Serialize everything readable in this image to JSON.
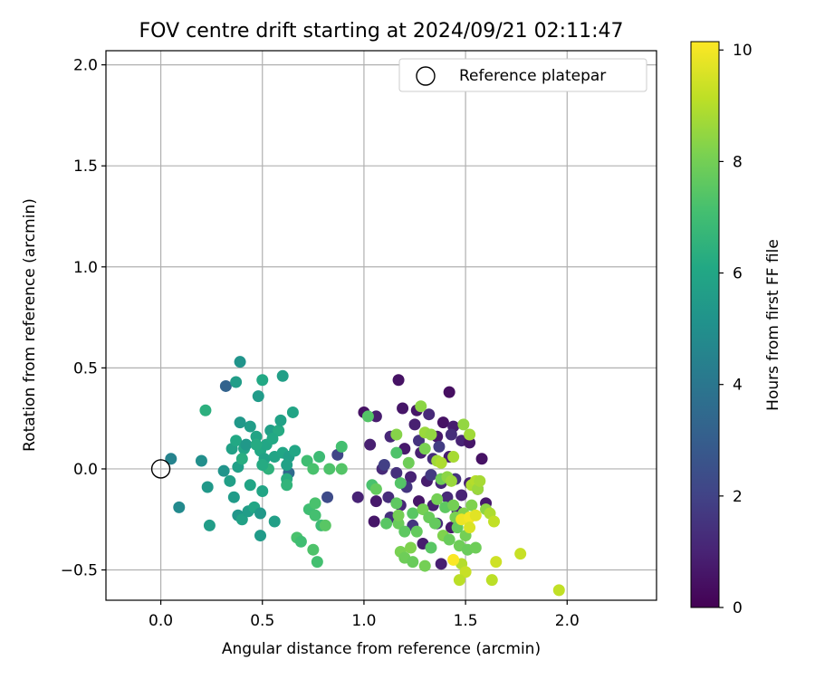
{
  "chart_data": {
    "type": "scatter",
    "title": "FOV centre drift starting at 2024/09/21 02:11:47",
    "xlabel": "Angular distance from reference (arcmin)",
    "ylabel": "Rotation from reference (arcmin)",
    "xlim": [
      -0.27,
      2.44
    ],
    "ylim": [
      -0.65,
      2.07
    ],
    "xticks": [
      0.0,
      0.5,
      1.0,
      1.5,
      2.0
    ],
    "yticks": [
      -0.5,
      0.0,
      0.5,
      1.0,
      1.5,
      2.0
    ],
    "xtick_labels": [
      "0.0",
      "0.5",
      "1.0",
      "1.5",
      "2.0"
    ],
    "ytick_labels": [
      "−0.5",
      "0.0",
      "0.5",
      "1.0",
      "1.5",
      "2.0"
    ],
    "grid": true,
    "legend": {
      "position": "top-right",
      "entries": [
        "Reference platepar"
      ]
    },
    "reference_point": {
      "x": 0.0,
      "y": 0.0
    },
    "colorbar": {
      "label": "Hours from first FF file",
      "range": [
        0,
        10.15
      ],
      "ticks": [
        0,
        2,
        4,
        6,
        8,
        10
      ],
      "tick_labels": [
        "0",
        "2",
        "4",
        "6",
        "8",
        "10"
      ],
      "colormap": "viridis"
    },
    "points": [
      [
        1.17,
        0.44,
        0.5
      ],
      [
        1.26,
        0.29,
        0.6
      ],
      [
        1.42,
        0.38,
        0.4
      ],
      [
        1.0,
        0.28,
        0.5
      ],
      [
        1.06,
        0.26,
        0.8
      ],
      [
        1.19,
        0.3,
        0.6
      ],
      [
        1.25,
        0.22,
        0.9
      ],
      [
        1.32,
        0.27,
        1.2
      ],
      [
        1.36,
        0.16,
        0.7
      ],
      [
        1.39,
        0.23,
        0.5
      ],
      [
        1.44,
        0.21,
        0.8
      ],
      [
        1.48,
        0.14,
        1.0
      ],
      [
        1.52,
        0.13,
        0.6
      ],
      [
        1.03,
        0.12,
        0.9
      ],
      [
        1.13,
        0.16,
        1.1
      ],
      [
        1.2,
        0.1,
        0.7
      ],
      [
        1.28,
        0.08,
        0.9
      ],
      [
        1.34,
        0.05,
        1.3
      ],
      [
        1.42,
        0.06,
        0.8
      ],
      [
        1.58,
        0.05,
        0.5
      ],
      [
        1.09,
        0.0,
        1.2
      ],
      [
        1.16,
        -0.02,
        1.4
      ],
      [
        1.23,
        -0.04,
        1.0
      ],
      [
        1.31,
        -0.06,
        0.8
      ],
      [
        1.38,
        -0.07,
        1.1
      ],
      [
        1.45,
        -0.05,
        1.5
      ],
      [
        1.52,
        -0.07,
        0.9
      ],
      [
        0.97,
        -0.14,
        1.0
      ],
      [
        1.06,
        -0.16,
        0.7
      ],
      [
        1.12,
        -0.14,
        1.3
      ],
      [
        1.18,
        -0.18,
        1.1
      ],
      [
        1.27,
        -0.16,
        0.6
      ],
      [
        1.34,
        -0.18,
        0.9
      ],
      [
        1.41,
        -0.14,
        1.2
      ],
      [
        1.48,
        -0.13,
        1.0
      ],
      [
        1.56,
        -0.1,
        0.8
      ],
      [
        1.6,
        -0.17,
        0.7
      ],
      [
        1.05,
        -0.26,
        0.6
      ],
      [
        1.13,
        -0.24,
        1.4
      ],
      [
        1.24,
        -0.28,
        1.6
      ],
      [
        1.36,
        -0.27,
        1.2
      ],
      [
        1.43,
        -0.29,
        0.7
      ],
      [
        1.29,
        -0.37,
        0.8
      ],
      [
        1.38,
        -0.47,
        0.9
      ],
      [
        1.46,
        -0.21,
        1.1
      ],
      [
        1.21,
        -0.09,
        1.6
      ],
      [
        1.27,
        0.14,
        1.5
      ],
      [
        1.37,
        0.11,
        1.8
      ],
      [
        1.43,
        0.17,
        1.3
      ],
      [
        1.33,
        -0.03,
        1.7
      ],
      [
        0.87,
        0.07,
        2.1
      ],
      [
        0.82,
        -0.14,
        2.3
      ],
      [
        1.1,
        0.02,
        1.9
      ],
      [
        0.32,
        0.41,
        3.2
      ],
      [
        0.63,
        -0.02,
        3.5
      ],
      [
        0.05,
        0.05,
        4.5
      ],
      [
        0.09,
        -0.19,
        4.8
      ],
      [
        0.2,
        0.04,
        5.0
      ],
      [
        0.23,
        -0.09,
        5.4
      ],
      [
        0.24,
        -0.28,
        5.6
      ],
      [
        0.31,
        -0.01,
        5.2
      ],
      [
        0.36,
        -0.14,
        5.5
      ],
      [
        0.34,
        -0.06,
        5.7
      ],
      [
        0.38,
        -0.23,
        5.3
      ],
      [
        0.4,
        -0.25,
        5.8
      ],
      [
        0.43,
        -0.21,
        5.6
      ],
      [
        0.46,
        -0.19,
        6.0
      ],
      [
        0.49,
        -0.22,
        5.4
      ],
      [
        0.49,
        -0.33,
        5.5
      ],
      [
        0.5,
        -0.11,
        5.9
      ],
      [
        0.56,
        -0.26,
        5.7
      ],
      [
        0.35,
        0.1,
        5.8
      ],
      [
        0.37,
        0.14,
        6.1
      ],
      [
        0.38,
        0.01,
        5.7
      ],
      [
        0.41,
        0.1,
        5.9
      ],
      [
        0.42,
        0.12,
        5.4
      ],
      [
        0.44,
        0.21,
        5.6
      ],
      [
        0.47,
        0.16,
        5.9
      ],
      [
        0.49,
        0.09,
        6.1
      ],
      [
        0.51,
        0.05,
        5.8
      ],
      [
        0.52,
        0.12,
        6.0
      ],
      [
        0.54,
        0.19,
        5.7
      ],
      [
        0.56,
        0.06,
        5.9
      ],
      [
        0.58,
        0.19,
        6.2
      ],
      [
        0.59,
        0.24,
        5.8
      ],
      [
        0.6,
        0.08,
        6.0
      ],
      [
        0.62,
        -0.05,
        6.3
      ],
      [
        0.63,
        0.06,
        5.7
      ],
      [
        0.65,
        0.28,
        5.9
      ],
      [
        0.39,
        0.23,
        5.4
      ],
      [
        0.39,
        0.53,
        5.2
      ],
      [
        0.37,
        0.43,
        5.6
      ],
      [
        0.5,
        0.44,
        6.1
      ],
      [
        0.48,
        0.36,
        5.5
      ],
      [
        0.6,
        0.46,
        5.7
      ],
      [
        0.22,
        0.29,
        6.4
      ],
      [
        0.47,
        0.12,
        6.2
      ],
      [
        0.53,
        0.0,
        6.5
      ],
      [
        0.55,
        0.15,
        6.1
      ],
      [
        0.62,
        0.02,
        5.8
      ],
      [
        0.66,
        0.09,
        6.0
      ],
      [
        0.4,
        0.05,
        6.3
      ],
      [
        0.44,
        -0.08,
        5.9
      ],
      [
        0.5,
        0.02,
        6.2
      ],
      [
        0.62,
        -0.08,
        6.6
      ],
      [
        0.72,
        0.04,
        7.0
      ],
      [
        0.75,
        0.0,
        7.2
      ],
      [
        0.78,
        0.06,
        6.9
      ],
      [
        0.83,
        0.0,
        7.3
      ],
      [
        0.89,
        0.11,
        7.1
      ],
      [
        0.89,
        0.0,
        7.4
      ],
      [
        0.73,
        -0.2,
        7.0
      ],
      [
        0.76,
        -0.17,
        7.2
      ],
      [
        0.76,
        -0.23,
        7.1
      ],
      [
        0.79,
        -0.28,
        6.9
      ],
      [
        0.81,
        -0.28,
        7.5
      ],
      [
        0.67,
        -0.34,
        7.2
      ],
      [
        0.69,
        -0.36,
        7.0
      ],
      [
        0.75,
        -0.4,
        7.3
      ],
      [
        0.77,
        -0.46,
        7.1
      ],
      [
        1.02,
        0.26,
        7.4
      ],
      [
        1.04,
        -0.08,
        7.2
      ],
      [
        1.06,
        -0.1,
        7.7
      ],
      [
        1.11,
        -0.27,
        7.5
      ],
      [
        1.16,
        0.08,
        7.3
      ],
      [
        1.16,
        -0.17,
        7.6
      ],
      [
        1.17,
        -0.27,
        7.8
      ],
      [
        1.18,
        -0.07,
        7.4
      ],
      [
        1.2,
        -0.31,
        7.6
      ],
      [
        1.22,
        0.03,
        7.9
      ],
      [
        1.24,
        -0.22,
        7.5
      ],
      [
        1.26,
        -0.31,
        7.7
      ],
      [
        1.29,
        -0.2,
        8.0
      ],
      [
        1.3,
        0.1,
        8.1
      ],
      [
        1.32,
        -0.24,
        7.8
      ],
      [
        1.33,
        -0.39,
        7.5
      ],
      [
        1.35,
        -0.27,
        7.7
      ],
      [
        1.36,
        -0.15,
        8.0
      ],
      [
        1.38,
        -0.05,
        7.9
      ],
      [
        1.39,
        -0.33,
        8.2
      ],
      [
        1.4,
        -0.19,
        7.6
      ],
      [
        1.42,
        -0.35,
        7.8
      ],
      [
        1.44,
        -0.18,
        8.0
      ],
      [
        1.45,
        -0.24,
        8.1
      ],
      [
        1.46,
        -0.29,
        7.7
      ],
      [
        1.47,
        -0.38,
        7.9
      ],
      [
        1.49,
        -0.22,
        8.3
      ],
      [
        1.5,
        -0.33,
        8.0
      ],
      [
        1.51,
        -0.4,
        7.8
      ],
      [
        1.53,
        -0.18,
        8.2
      ],
      [
        1.55,
        -0.39,
        7.9
      ],
      [
        1.17,
        -0.23,
        8.0
      ],
      [
        1.18,
        -0.41,
        8.1
      ],
      [
        1.2,
        -0.44,
        7.9
      ],
      [
        1.23,
        -0.39,
        8.2
      ],
      [
        1.24,
        -0.46,
        7.8
      ],
      [
        1.3,
        -0.48,
        8.0
      ],
      [
        1.16,
        0.17,
        8.3
      ],
      [
        1.28,
        0.31,
        8.4
      ],
      [
        1.3,
        0.18,
        8.6
      ],
      [
        1.33,
        0.17,
        8.5
      ],
      [
        1.36,
        0.04,
        8.7
      ],
      [
        1.38,
        0.03,
        8.9
      ],
      [
        1.41,
        -0.04,
        8.4
      ],
      [
        1.43,
        -0.06,
        8.6
      ],
      [
        1.44,
        0.06,
        8.8
      ],
      [
        1.49,
        0.22,
        8.5
      ],
      [
        1.52,
        0.17,
        8.7
      ],
      [
        1.53,
        -0.08,
        8.9
      ],
      [
        1.55,
        -0.06,
        9.0
      ],
      [
        1.56,
        -0.1,
        8.6
      ],
      [
        1.57,
        -0.06,
        8.8
      ],
      [
        1.6,
        -0.2,
        8.4
      ],
      [
        1.62,
        -0.22,
        8.9
      ],
      [
        1.63,
        -0.55,
        9.1
      ],
      [
        1.64,
        -0.26,
        9.2
      ],
      [
        1.65,
        -0.46,
        9.4
      ],
      [
        1.77,
        -0.42,
        9.3
      ],
      [
        1.96,
        -0.6,
        9.2
      ],
      [
        1.48,
        -0.47,
        9.0
      ],
      [
        1.5,
        -0.51,
        9.3
      ],
      [
        1.47,
        -0.55,
        9.1
      ],
      [
        1.44,
        -0.45,
        10.1
      ],
      [
        1.48,
        -0.25,
        9.9
      ],
      [
        1.52,
        -0.24,
        10.0
      ],
      [
        1.52,
        -0.29,
        9.6
      ],
      [
        1.55,
        -0.23,
        9.7
      ]
    ]
  }
}
